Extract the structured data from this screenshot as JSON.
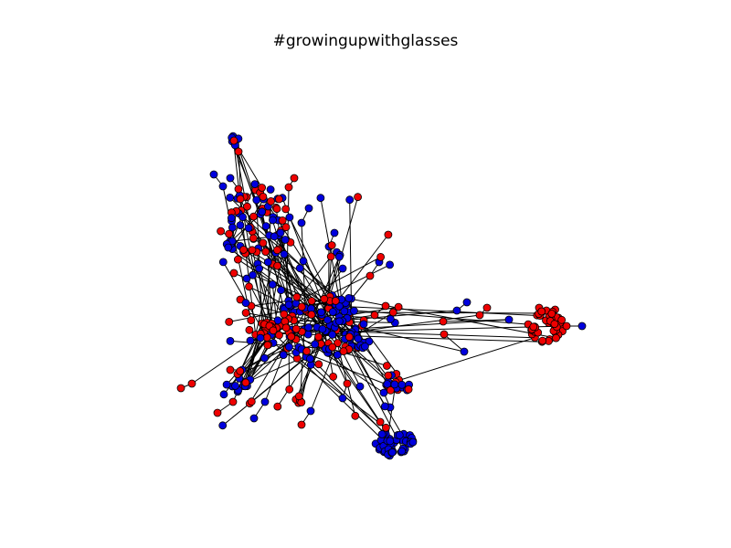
{
  "title": "#growingupwithglasses",
  "legend": null,
  "node_colors": {
    "a": "#0000dd",
    "b": "#ee0000"
  },
  "node_outline_color": "#000000",
  "edge_color": "#000000",
  "background_color": "#ffffff"
}
